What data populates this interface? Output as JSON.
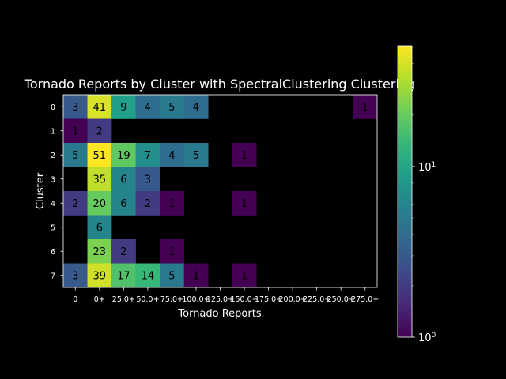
{
  "chart_data": {
    "type": "heatmap",
    "title": "Tornado Reports by Cluster with SpectralClustering Clustering",
    "xlabel": "Tornado Reports",
    "ylabel": "Cluster",
    "x_categories": [
      "0",
      "0+",
      "25.0+",
      "50.0+",
      "75.0+",
      "100.0+",
      "125.0+",
      "150.0+",
      "175.0+",
      "200.0+",
      "225.0+",
      "250.0+",
      "275.0+"
    ],
    "y_categories": [
      "0",
      "1",
      "2",
      "3",
      "4",
      "5",
      "6",
      "7"
    ],
    "values": [
      [
        3,
        41,
        9,
        4,
        5,
        4,
        null,
        null,
        null,
        null,
        null,
        null,
        1
      ],
      [
        1,
        2,
        null,
        null,
        null,
        null,
        null,
        null,
        null,
        null,
        null,
        null,
        null
      ],
      [
        5,
        51,
        19,
        7,
        4,
        5,
        null,
        1,
        null,
        null,
        null,
        null,
        null
      ],
      [
        null,
        35,
        6,
        3,
        null,
        null,
        null,
        null,
        null,
        null,
        null,
        null,
        null
      ],
      [
        2,
        20,
        6,
        2,
        1,
        null,
        null,
        1,
        null,
        null,
        null,
        null,
        null
      ],
      [
        null,
        6,
        null,
        null,
        null,
        null,
        null,
        null,
        null,
        null,
        null,
        null,
        null
      ],
      [
        null,
        23,
        2,
        null,
        1,
        null,
        null,
        null,
        null,
        null,
        null,
        null,
        null
      ],
      [
        3,
        39,
        17,
        14,
        5,
        1,
        null,
        1,
        null,
        null,
        null,
        null,
        null
      ]
    ],
    "colorscale": "viridis",
    "color_scale_type": "log",
    "color_range": [
      1,
      51
    ],
    "colorbar_ticks": [
      "10^0",
      "10^1"
    ],
    "grid": false,
    "background": "#000000"
  }
}
